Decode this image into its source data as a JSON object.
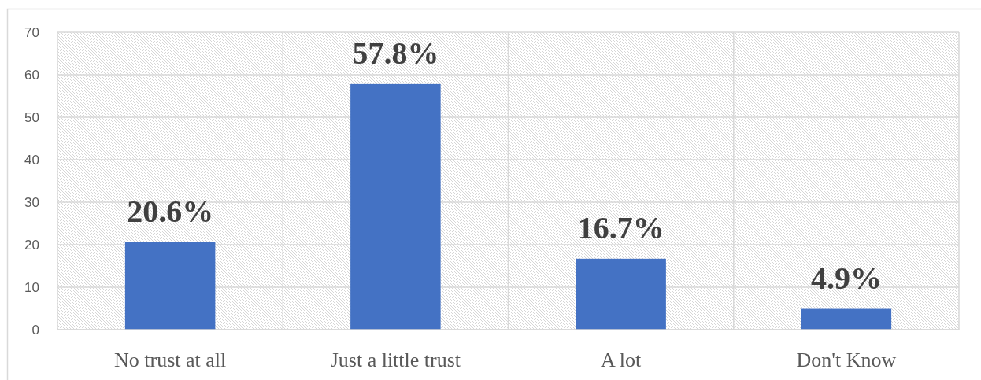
{
  "chart_data": {
    "type": "bar",
    "categories": [
      "No trust at all",
      "Just a little trust",
      "A lot",
      "Don't Know"
    ],
    "values": [
      20.6,
      57.8,
      16.7,
      4.9
    ],
    "value_labels": [
      "20.6%",
      "57.8%",
      "16.7%",
      "4.9%"
    ],
    "color": "#4472c4",
    "ylim": [
      0,
      70
    ],
    "yticks": [
      0,
      10,
      20,
      30,
      40,
      50,
      60,
      70
    ],
    "grid": true
  }
}
